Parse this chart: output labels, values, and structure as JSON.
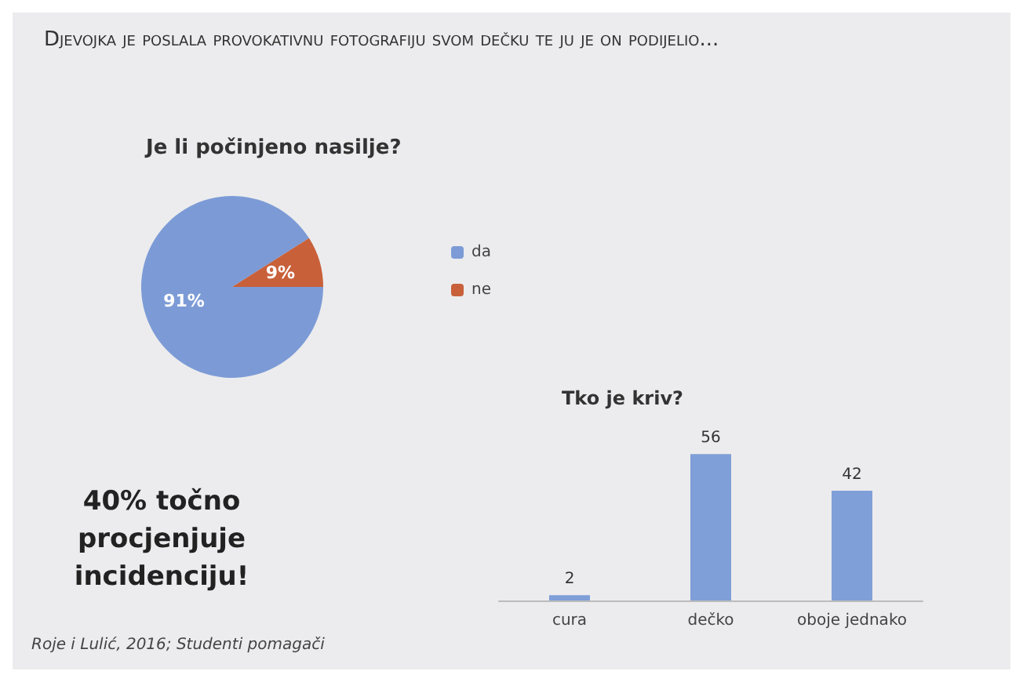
{
  "chart_data": [
    {
      "type": "other",
      "title": "Djevojka je poslala provokativnu fotografiju svom dečku te ju je on podijelio...",
      "annotations": [
        "40% točno procjenjuje incidenciju!",
        "Roje i Lulić, 2016; Studenti pomagači"
      ]
    },
    {
      "type": "pie",
      "title": "Je li počinjeno nasilje?",
      "categories": [
        "da",
        "ne"
      ],
      "values": [
        91,
        9
      ],
      "colors": [
        "#7c9bd6",
        "#c8603a"
      ],
      "value_labels": [
        "91%",
        "9%"
      ],
      "legend": "right"
    },
    {
      "type": "bar",
      "title": "Tko je kriv?",
      "categories": [
        "cura",
        "dečko",
        "oboje jednako"
      ],
      "values": [
        2,
        56,
        42
      ],
      "color": "#7f9fd8",
      "data_labels": true
    }
  ]
}
